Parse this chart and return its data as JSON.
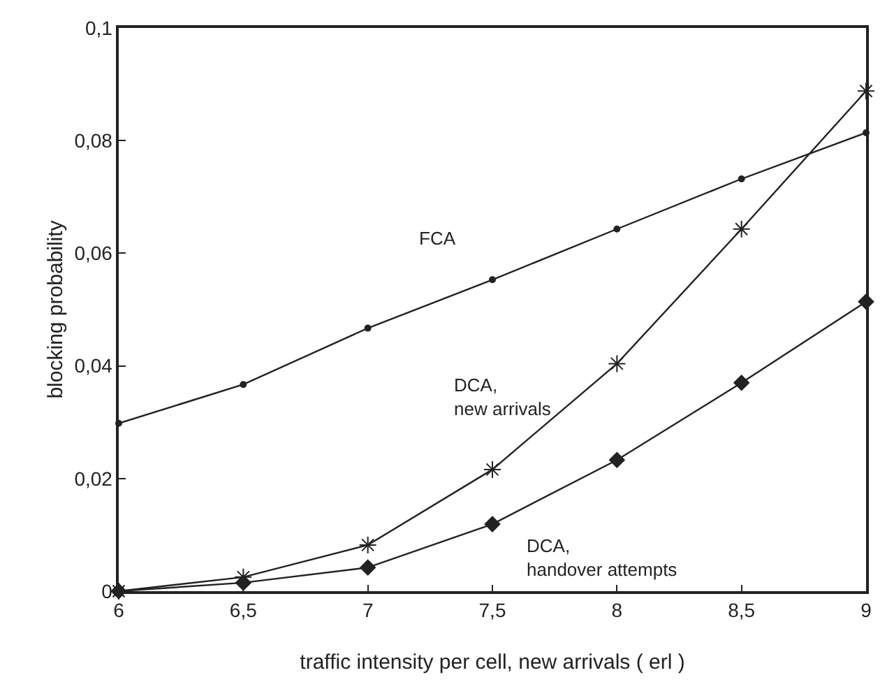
{
  "chart_data": {
    "type": "line",
    "xlabel": "traffic intensity per cell, new arrivals ( erl )",
    "ylabel": "blocking probability",
    "x": [
      6,
      6.5,
      7,
      7.5,
      8,
      8.5,
      9
    ],
    "series": [
      {
        "name": "FCA",
        "color": "#222222",
        "marker": "circle",
        "values": [
          0.0298,
          0.0367,
          0.0467,
          0.0553,
          0.0643,
          0.0732,
          0.0814
        ]
      },
      {
        "name": "DCA, new arrivals",
        "color": "#222222",
        "marker": "cross",
        "values": [
          0,
          0.0025,
          0.0082,
          0.0216,
          0.0404,
          0.0643,
          0.0888
        ]
      },
      {
        "name": "DCA, handover attempts",
        "color": "#222222",
        "marker": "diamond",
        "values": [
          0,
          0.0015,
          0.0042,
          0.0119,
          0.0233,
          0.037,
          0.0514
        ]
      }
    ],
    "xlim": [
      6,
      9
    ],
    "ylim": [
      0,
      0.1
    ],
    "xticks": [
      6,
      {
        "value": 6.5,
        "label": "6,5"
      },
      7,
      {
        "value": 7.5,
        "label": "7,5"
      },
      8,
      {
        "value": 8.5,
        "label": "8,5"
      },
      9
    ],
    "yticks": [
      0,
      {
        "value": 0.02,
        "label": "0,02"
      },
      {
        "value": 0.04,
        "label": "0,04"
      },
      {
        "value": 0.06,
        "label": "0,06"
      },
      {
        "value": 0.08,
        "label": "0,08"
      },
      {
        "value": 0.1,
        "label": "0,1"
      }
    ],
    "grid": false,
    "legend": false,
    "line_style": "solid"
  }
}
